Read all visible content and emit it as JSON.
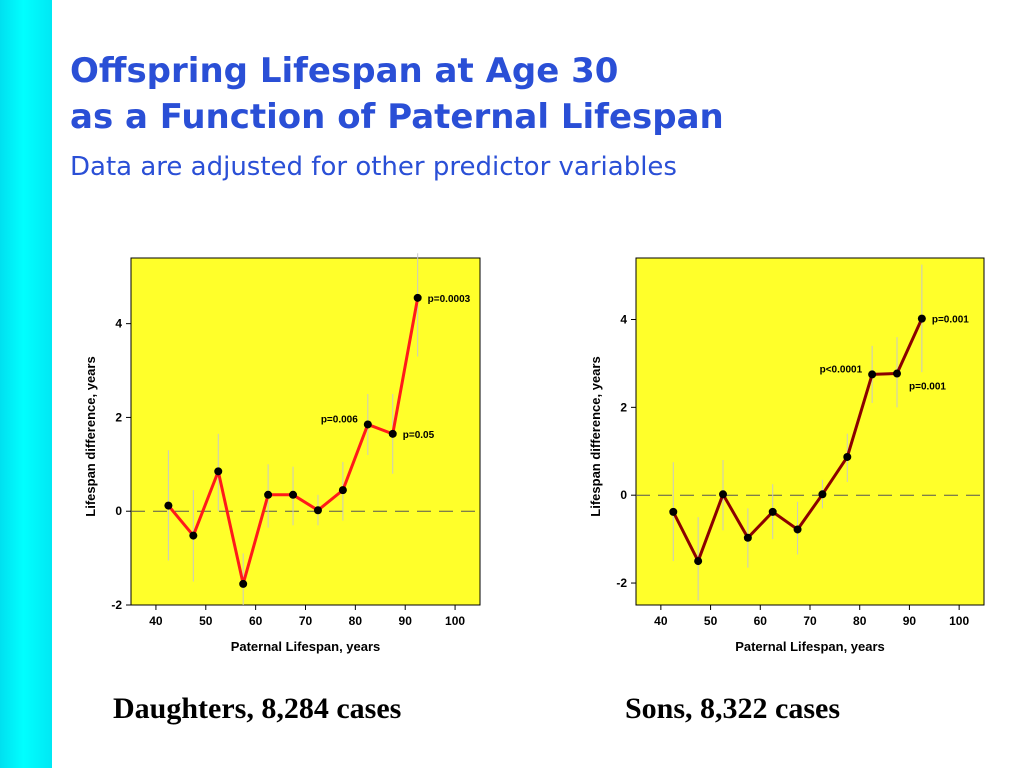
{
  "slide": {
    "title_line1": "Offspring  Lifespan at Age 30",
    "title_line2": "as  a  Function  of  Paternal  Lifespan",
    "subtitle": "Data are adjusted for other predictor variables"
  },
  "colors": {
    "sidebar": "#00f0ff",
    "title": "#2a4fd6",
    "plot_bg": "#ffff2a",
    "daughters_line": "#ff1a1a",
    "sons_line": "#8b0000",
    "point": "#000000",
    "error_bar": "#c8c8c8"
  },
  "chart_data": [
    {
      "type": "line",
      "caption": "Daughters, 8,284 cases",
      "xlabel": "Paternal Lifespan, years",
      "ylabel": "Lifespan difference, years",
      "xlim": [
        35,
        105
      ],
      "ylim": [
        -2,
        5.4
      ],
      "xticks": [
        40,
        50,
        60,
        70,
        80,
        90,
        100
      ],
      "yticks": [
        -2,
        0,
        2,
        4
      ],
      "reference_line_y": 0,
      "grid": false,
      "x": [
        42.5,
        47.5,
        52.5,
        57.5,
        62.5,
        67.5,
        72.5,
        77.5,
        82.5,
        87.5,
        92.5
      ],
      "y": [
        0.12,
        -0.52,
        0.85,
        -1.55,
        0.35,
        0.35,
        0.02,
        0.45,
        1.85,
        1.65,
        4.55
      ],
      "error_low": [
        -1.05,
        -1.5,
        0.0,
        -2.0,
        -0.35,
        -0.3,
        -0.3,
        -0.2,
        1.2,
        0.8,
        3.3
      ],
      "error_high": [
        1.3,
        0.45,
        1.65,
        -0.9,
        1.0,
        0.95,
        0.35,
        1.05,
        2.5,
        2.5,
        5.5
      ],
      "annotations": [
        {
          "text": "p=0.0003",
          "x": 92.5,
          "y": 4.55,
          "side": "right"
        },
        {
          "text": "p=0.006",
          "x": 82.5,
          "y": 1.85,
          "side": "left"
        },
        {
          "text": "p=0.05",
          "x": 87.5,
          "y": 1.65,
          "side": "right"
        }
      ]
    },
    {
      "type": "line",
      "caption": "Sons, 8,322 cases",
      "xlabel": "Paternal Lifespan, years",
      "ylabel": "Lifespan difference, years",
      "xlim": [
        35,
        105
      ],
      "ylim": [
        -2.5,
        5.4
      ],
      "xticks": [
        40,
        50,
        60,
        70,
        80,
        90,
        100
      ],
      "yticks": [
        -2,
        0,
        2,
        4
      ],
      "reference_line_y": 0,
      "grid": false,
      "x": [
        42.5,
        47.5,
        52.5,
        57.5,
        62.5,
        67.5,
        72.5,
        77.5,
        82.5,
        87.5,
        92.5
      ],
      "y": [
        -0.38,
        -1.5,
        0.02,
        -0.97,
        -0.38,
        -0.78,
        0.02,
        0.87,
        2.75,
        2.77,
        4.02
      ],
      "error_low": [
        -1.5,
        -2.4,
        -0.8,
        -1.65,
        -1.0,
        -1.35,
        -0.3,
        0.3,
        2.1,
        2.0,
        2.8
      ],
      "error_high": [
        0.75,
        -0.5,
        0.8,
        -0.3,
        0.25,
        -0.15,
        0.35,
        1.4,
        3.4,
        3.6,
        5.25
      ],
      "annotations": [
        {
          "text": "p=0.001",
          "x": 92.5,
          "y": 4.02,
          "side": "right"
        },
        {
          "text": "p<0.0001",
          "x": 82.5,
          "y": 2.75,
          "side": "left"
        },
        {
          "text": "p=0.001",
          "x": 87.5,
          "y": 2.77,
          "side": "right-below"
        }
      ]
    }
  ]
}
